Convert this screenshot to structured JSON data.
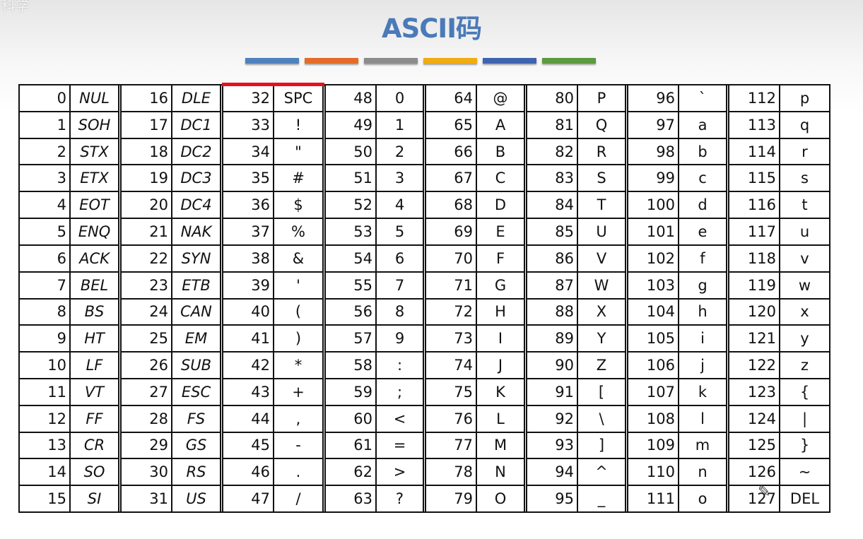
{
  "header": {
    "logo_text": "科学",
    "title": "ASCII码"
  },
  "colorbar": {
    "colors": [
      "#4f81bd",
      "#e36c2a",
      "#8c8c8c",
      "#f0ac12",
      "#3e64b0",
      "#5b9a3f"
    ]
  },
  "table": {
    "groups": [
      {
        "rows": [
          [
            "0",
            "NUL"
          ],
          [
            "1",
            "SOH"
          ],
          [
            "2",
            "STX"
          ],
          [
            "3",
            "ETX"
          ],
          [
            "4",
            "EOT"
          ],
          [
            "5",
            "ENQ"
          ],
          [
            "6",
            "ACK"
          ],
          [
            "7",
            "BEL"
          ],
          [
            "8",
            "BS"
          ],
          [
            "9",
            "HT"
          ],
          [
            "10",
            "LF"
          ],
          [
            "11",
            "VT"
          ],
          [
            "12",
            "FF"
          ],
          [
            "13",
            "CR"
          ],
          [
            "14",
            "SO"
          ],
          [
            "15",
            "SI"
          ]
        ]
      },
      {
        "rows": [
          [
            "16",
            "DLE"
          ],
          [
            "17",
            "DC1"
          ],
          [
            "18",
            "DC2"
          ],
          [
            "19",
            "DC3"
          ],
          [
            "20",
            "DC4"
          ],
          [
            "21",
            "NAK"
          ],
          [
            "22",
            "SYN"
          ],
          [
            "23",
            "ETB"
          ],
          [
            "24",
            "CAN"
          ],
          [
            "25",
            "EM"
          ],
          [
            "26",
            "SUB"
          ],
          [
            "27",
            "ESC"
          ],
          [
            "28",
            "FS"
          ],
          [
            "29",
            "GS"
          ],
          [
            "30",
            "RS"
          ],
          [
            "31",
            "US"
          ]
        ]
      },
      {
        "rows": [
          [
            "32",
            "SPC"
          ],
          [
            "33",
            "!"
          ],
          [
            "34",
            "\""
          ],
          [
            "35",
            "#"
          ],
          [
            "36",
            "$"
          ],
          [
            "37",
            "%"
          ],
          [
            "38",
            "&"
          ],
          [
            "39",
            "'"
          ],
          [
            "40",
            "("
          ],
          [
            "41",
            ")"
          ],
          [
            "42",
            "*"
          ],
          [
            "43",
            "+"
          ],
          [
            "44",
            ","
          ],
          [
            "45",
            "-"
          ],
          [
            "46",
            "."
          ],
          [
            "47",
            "/"
          ]
        ]
      },
      {
        "rows": [
          [
            "48",
            "0"
          ],
          [
            "49",
            "1"
          ],
          [
            "50",
            "2"
          ],
          [
            "51",
            "3"
          ],
          [
            "52",
            "4"
          ],
          [
            "53",
            "5"
          ],
          [
            "54",
            "6"
          ],
          [
            "55",
            "7"
          ],
          [
            "56",
            "8"
          ],
          [
            "57",
            "9"
          ],
          [
            "58",
            ":"
          ],
          [
            "59",
            ";"
          ],
          [
            "60",
            "<"
          ],
          [
            "61",
            "="
          ],
          [
            "62",
            ">"
          ],
          [
            "63",
            "?"
          ]
        ]
      },
      {
        "rows": [
          [
            "64",
            "@"
          ],
          [
            "65",
            "A"
          ],
          [
            "66",
            "B"
          ],
          [
            "67",
            "C"
          ],
          [
            "68",
            "D"
          ],
          [
            "69",
            "E"
          ],
          [
            "70",
            "F"
          ],
          [
            "71",
            "G"
          ],
          [
            "72",
            "H"
          ],
          [
            "73",
            "I"
          ],
          [
            "74",
            "J"
          ],
          [
            "75",
            "K"
          ],
          [
            "76",
            "L"
          ],
          [
            "77",
            "M"
          ],
          [
            "78",
            "N"
          ],
          [
            "79",
            "O"
          ]
        ]
      },
      {
        "rows": [
          [
            "80",
            "P"
          ],
          [
            "81",
            "Q"
          ],
          [
            "82",
            "R"
          ],
          [
            "83",
            "S"
          ],
          [
            "84",
            "T"
          ],
          [
            "85",
            "U"
          ],
          [
            "86",
            "V"
          ],
          [
            "87",
            "W"
          ],
          [
            "88",
            "X"
          ],
          [
            "89",
            "Y"
          ],
          [
            "90",
            "Z"
          ],
          [
            "91",
            "["
          ],
          [
            "92",
            "\\"
          ],
          [
            "93",
            "]"
          ],
          [
            "94",
            "^"
          ],
          [
            "95",
            "_"
          ]
        ]
      },
      {
        "rows": [
          [
            "96",
            "`"
          ],
          [
            "97",
            "a"
          ],
          [
            "98",
            "b"
          ],
          [
            "99",
            "c"
          ],
          [
            "100",
            "d"
          ],
          [
            "101",
            "e"
          ],
          [
            "102",
            "f"
          ],
          [
            "103",
            "g"
          ],
          [
            "104",
            "h"
          ],
          [
            "105",
            "i"
          ],
          [
            "106",
            "j"
          ],
          [
            "107",
            "k"
          ],
          [
            "108",
            "l"
          ],
          [
            "109",
            "m"
          ],
          [
            "110",
            "n"
          ],
          [
            "111",
            "o"
          ]
        ]
      },
      {
        "rows": [
          [
            "112",
            "p"
          ],
          [
            "113",
            "q"
          ],
          [
            "114",
            "r"
          ],
          [
            "115",
            "s"
          ],
          [
            "116",
            "t"
          ],
          [
            "117",
            "u"
          ],
          [
            "118",
            "v"
          ],
          [
            "119",
            "w"
          ],
          [
            "120",
            "x"
          ],
          [
            "121",
            "y"
          ],
          [
            "122",
            "z"
          ],
          [
            "123",
            "{"
          ],
          [
            "124",
            "|"
          ],
          [
            "125",
            "}"
          ],
          [
            "126",
            "~"
          ],
          [
            "127",
            "DEL"
          ]
        ]
      }
    ]
  }
}
